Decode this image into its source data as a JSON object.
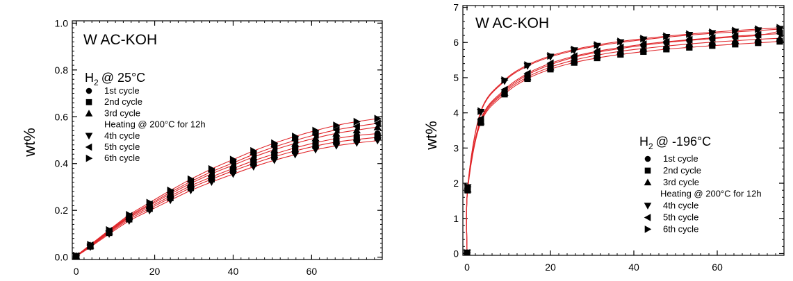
{
  "chart_data": [
    {
      "type": "scatter",
      "title": "W AC-KOH",
      "condition": "@ 25°C",
      "condition_gas": "H",
      "condition_sub": "2",
      "xlabel": "",
      "ylabel": "wt%",
      "xlim": [
        -1,
        78
      ],
      "ylim": [
        -0.01,
        1.01
      ],
      "xticks": [
        0,
        20,
        40,
        60
      ],
      "yticks": [
        0.0,
        0.2,
        0.4,
        0.6,
        0.8,
        1.0
      ],
      "ytick_labels": [
        "0.0",
        "0.2",
        "0.4",
        "0.6",
        "0.8",
        "1.0"
      ],
      "fit_color": "#e0262a",
      "x": [
        0,
        3.6,
        8.4,
        13.5,
        18.7,
        24,
        29.2,
        34.5,
        40,
        45.2,
        50.5,
        55.8,
        61,
        66.3,
        71.5,
        76.8
      ],
      "legend": [
        {
          "label": "1st cycle",
          "marker": "circle"
        },
        {
          "label": "2nd cycle",
          "marker": "square"
        },
        {
          "label": "3rd cycle",
          "marker": "triangle-up"
        },
        {
          "label": "Heating @ 200°C for 12h",
          "marker": "none"
        },
        {
          "label": "4th cycle",
          "marker": "triangle-down"
        },
        {
          "label": "5th cycle",
          "marker": "triangle-left"
        },
        {
          "label": "6th cycle",
          "marker": "triangle-right"
        }
      ],
      "series": [
        {
          "marker": "circle",
          "values": [
            0.005,
            0.048,
            0.108,
            0.168,
            0.214,
            0.261,
            0.305,
            0.343,
            0.379,
            0.412,
            0.441,
            0.467,
            0.489,
            0.507,
            0.52,
            0.528
          ]
        },
        {
          "marker": "square",
          "values": [
            0.004,
            0.046,
            0.104,
            0.162,
            0.207,
            0.253,
            0.296,
            0.333,
            0.369,
            0.4,
            0.429,
            0.454,
            0.475,
            0.492,
            0.503,
            0.512
          ]
        },
        {
          "marker": "triangle-up",
          "values": [
            0.005,
            0.05,
            0.11,
            0.172,
            0.221,
            0.27,
            0.315,
            0.356,
            0.393,
            0.428,
            0.459,
            0.486,
            0.509,
            0.529,
            0.543,
            0.556
          ]
        },
        {
          "marker": "triangle-down",
          "values": [
            0.003,
            0.043,
            0.099,
            0.155,
            0.199,
            0.243,
            0.285,
            0.321,
            0.355,
            0.386,
            0.414,
            0.438,
            0.459,
            0.476,
            0.488,
            0.498
          ]
        },
        {
          "marker": "triangle-left",
          "values": [
            0.005,
            0.051,
            0.113,
            0.176,
            0.226,
            0.277,
            0.323,
            0.365,
            0.403,
            0.439,
            0.471,
            0.499,
            0.523,
            0.544,
            0.559,
            0.572
          ]
        },
        {
          "marker": "triangle-right",
          "values": [
            0.006,
            0.053,
            0.116,
            0.181,
            0.233,
            0.285,
            0.333,
            0.377,
            0.417,
            0.454,
            0.487,
            0.516,
            0.541,
            0.563,
            0.579,
            0.592
          ]
        }
      ]
    },
    {
      "type": "scatter",
      "title": "W AC-KOH",
      "condition": "@ -196°C",
      "condition_gas": "H",
      "condition_sub": "2",
      "xlabel": "",
      "ylabel": "wt%",
      "xlim": [
        -1,
        76
      ],
      "ylim": [
        -0.05,
        7.05
      ],
      "xticks": [
        0,
        20,
        40,
        60
      ],
      "yticks": [
        0,
        1,
        2,
        3,
        4,
        5,
        6,
        7
      ],
      "ytick_labels": [
        "0",
        "1",
        "2",
        "3",
        "4",
        "5",
        "6",
        "7"
      ],
      "fit_color": "#e0262a",
      "x": [
        0,
        0.15,
        3.3,
        9,
        14.5,
        20,
        25.7,
        31.2,
        36.8,
        42.3,
        47.8,
        53.3,
        58.8,
        64.3,
        69.8,
        75
      ],
      "legend": [
        {
          "label": "1st cycle",
          "marker": "circle"
        },
        {
          "label": "2nd cycle",
          "marker": "square"
        },
        {
          "label": "3rd cycle",
          "marker": "triangle-up"
        },
        {
          "label": "Heating @ 200°C for 12h",
          "marker": "none"
        },
        {
          "label": "4th cycle",
          "marker": "triangle-down"
        },
        {
          "label": "5th cycle",
          "marker": "triangle-left"
        },
        {
          "label": "6th cycle",
          "marker": "triangle-right"
        }
      ],
      "series": [
        {
          "marker": "circle",
          "values": [
            0.02,
            1.85,
            3.8,
            4.62,
            5.08,
            5.37,
            5.58,
            5.72,
            5.83,
            5.92,
            6.0,
            6.06,
            6.11,
            6.16,
            6.2,
            6.32
          ]
        },
        {
          "marker": "square",
          "values": [
            0.02,
            1.8,
            3.72,
            4.53,
            4.97,
            5.24,
            5.43,
            5.56,
            5.66,
            5.74,
            5.81,
            5.86,
            5.91,
            5.95,
            5.99,
            6.03
          ]
        },
        {
          "marker": "triangle-up",
          "values": [
            0.02,
            1.83,
            3.76,
            4.58,
            5.02,
            5.3,
            5.5,
            5.64,
            5.75,
            5.83,
            5.9,
            5.96,
            6.01,
            6.05,
            6.09,
            6.12
          ]
        },
        {
          "marker": "triangle-down",
          "values": [
            0.02,
            1.88,
            4.02,
            4.9,
            5.33,
            5.59,
            5.77,
            5.9,
            6.0,
            6.08,
            6.15,
            6.21,
            6.26,
            6.3,
            6.34,
            6.38
          ]
        },
        {
          "marker": "triangle-left",
          "values": [
            0.02,
            1.84,
            3.82,
            4.66,
            5.12,
            5.41,
            5.61,
            5.75,
            5.86,
            5.95,
            6.02,
            6.08,
            6.13,
            6.18,
            6.22,
            6.25
          ]
        },
        {
          "marker": "triangle-right",
          "values": [
            0.02,
            1.9,
            4.05,
            4.93,
            5.36,
            5.62,
            5.8,
            5.93,
            6.03,
            6.11,
            6.18,
            6.24,
            6.29,
            6.34,
            6.38,
            6.42
          ]
        }
      ]
    }
  ]
}
